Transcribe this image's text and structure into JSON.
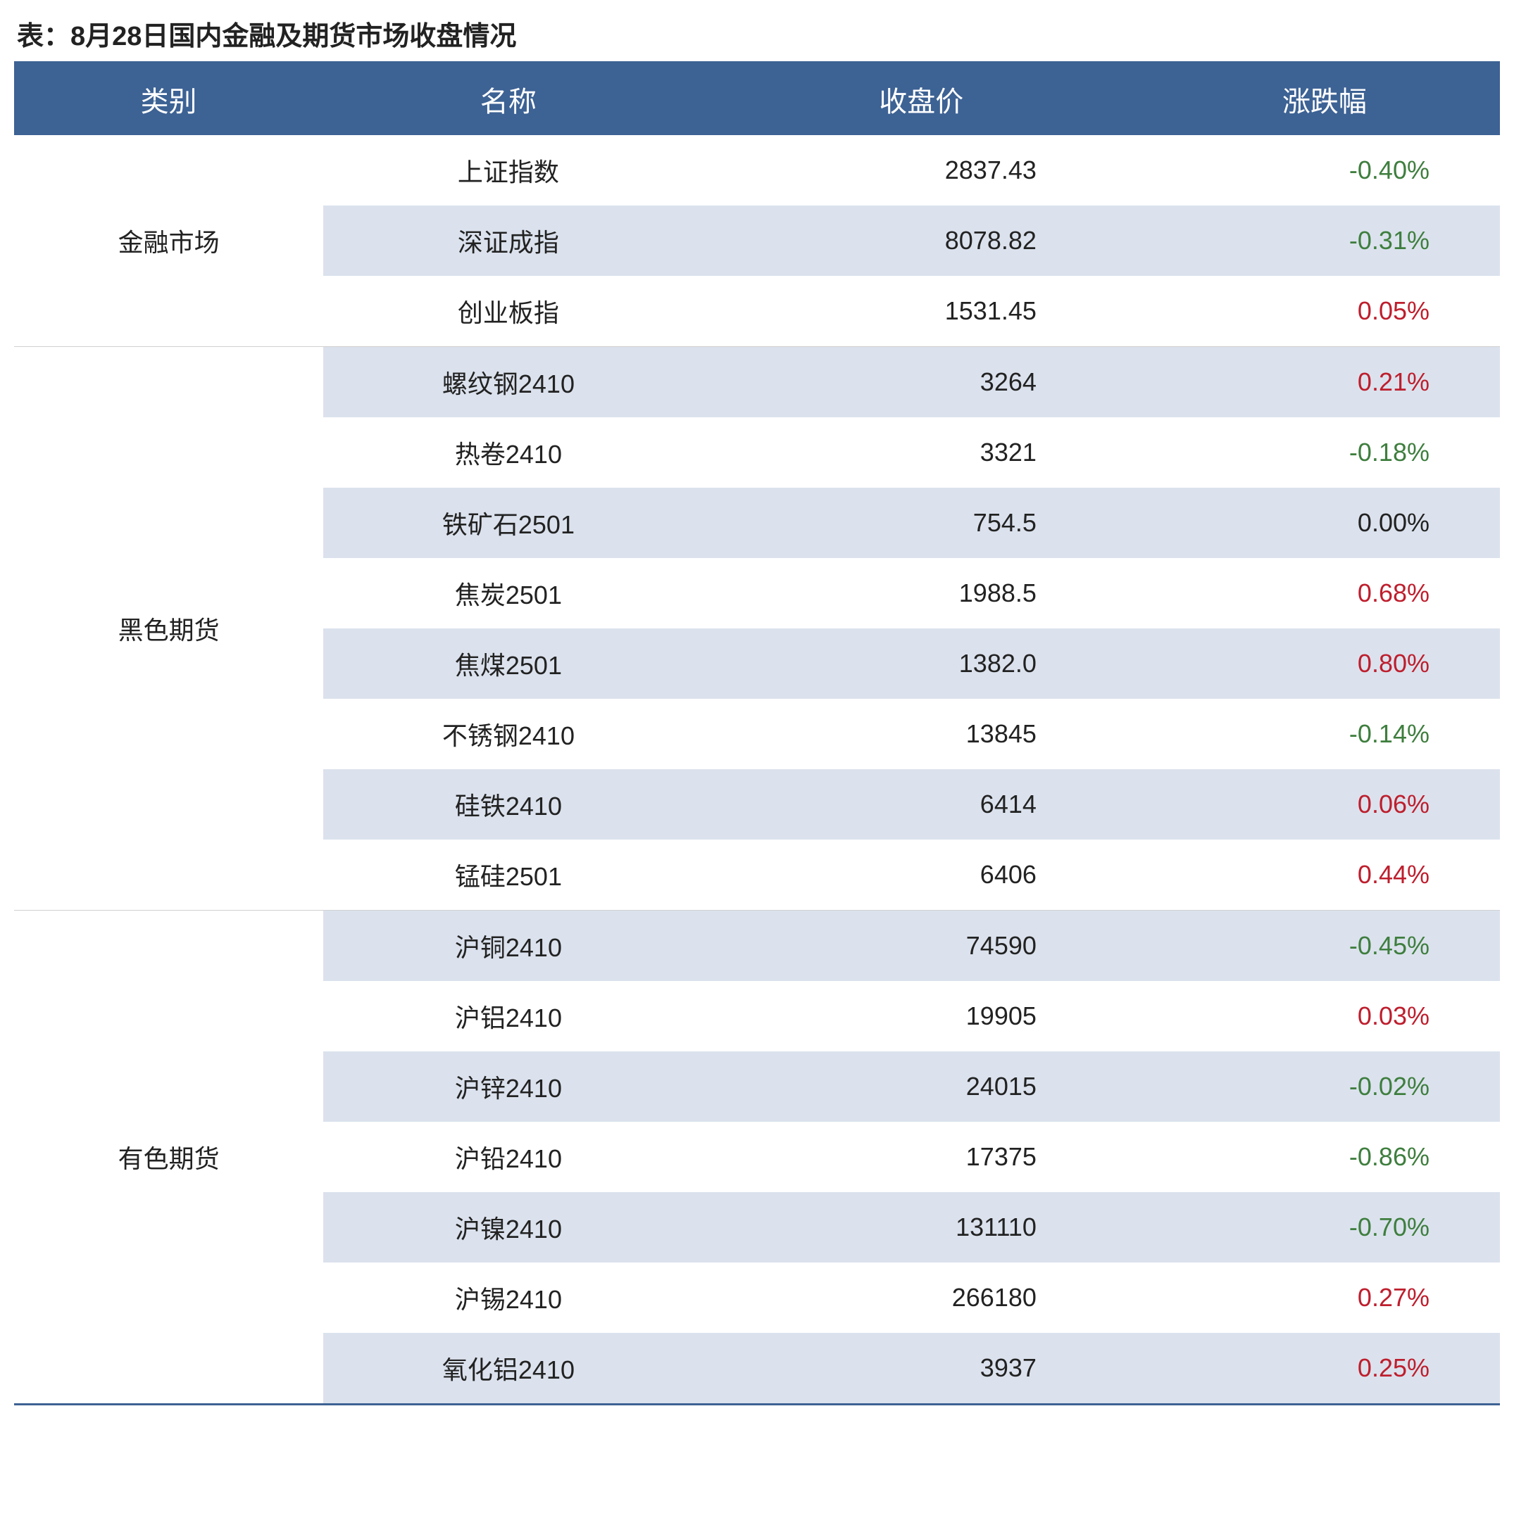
{
  "title": "表：8月28日国内金融及期货市场收盘情况",
  "colors": {
    "header_bg": "#3d6294",
    "header_text": "#ffffff",
    "row_alt_bg": "#dbe2ed",
    "row_bg": "#ffffff",
    "text": "#222222",
    "up": "#be1e2d",
    "down": "#3e7e3e",
    "neutral": "#222222",
    "border": "#3d6294"
  },
  "columns": [
    "类别",
    "名称",
    "收盘价",
    "涨跌幅"
  ],
  "groups": [
    {
      "category": "金融市场",
      "rows": [
        {
          "name": "上证指数",
          "price": "2837.43",
          "change": "-0.40%",
          "direction": "down",
          "alt": false
        },
        {
          "name": "深证成指",
          "price": "8078.82",
          "change": "-0.31%",
          "direction": "down",
          "alt": true
        },
        {
          "name": "创业板指",
          "price": "1531.45",
          "change": "0.05%",
          "direction": "up",
          "alt": false
        }
      ]
    },
    {
      "category": "黑色期货",
      "rows": [
        {
          "name": "螺纹钢2410",
          "price": "3264",
          "change": "0.21%",
          "direction": "up",
          "alt": true
        },
        {
          "name": "热卷2410",
          "price": "3321",
          "change": "-0.18%",
          "direction": "down",
          "alt": false
        },
        {
          "name": "铁矿石2501",
          "price": "754.5",
          "change": "0.00%",
          "direction": "neutral",
          "alt": true
        },
        {
          "name": "焦炭2501",
          "price": "1988.5",
          "change": "0.68%",
          "direction": "up",
          "alt": false
        },
        {
          "name": "焦煤2501",
          "price": "1382.0",
          "change": "0.80%",
          "direction": "up",
          "alt": true
        },
        {
          "name": "不锈钢2410",
          "price": "13845",
          "change": "-0.14%",
          "direction": "down",
          "alt": false
        },
        {
          "name": "硅铁2410",
          "price": "6414",
          "change": "0.06%",
          "direction": "up",
          "alt": true
        },
        {
          "name": "锰硅2501",
          "price": "6406",
          "change": "0.44%",
          "direction": "up",
          "alt": false
        }
      ]
    },
    {
      "category": "有色期货",
      "rows": [
        {
          "name": "沪铜2410",
          "price": "74590",
          "change": "-0.45%",
          "direction": "down",
          "alt": true
        },
        {
          "name": "沪铝2410",
          "price": "19905",
          "change": "0.03%",
          "direction": "up",
          "alt": false
        },
        {
          "name": "沪锌2410",
          "price": "24015",
          "change": "-0.02%",
          "direction": "down",
          "alt": true
        },
        {
          "name": "沪铅2410",
          "price": "17375",
          "change": "-0.86%",
          "direction": "down",
          "alt": false
        },
        {
          "name": "沪镍2410",
          "price": "131110",
          "change": "-0.70%",
          "direction": "down",
          "alt": true
        },
        {
          "name": "沪锡2410",
          "price": "266180",
          "change": "0.27%",
          "direction": "up",
          "alt": false
        },
        {
          "name": "氧化铝2410",
          "price": "3937",
          "change": "0.25%",
          "direction": "up",
          "alt": true
        }
      ]
    }
  ]
}
